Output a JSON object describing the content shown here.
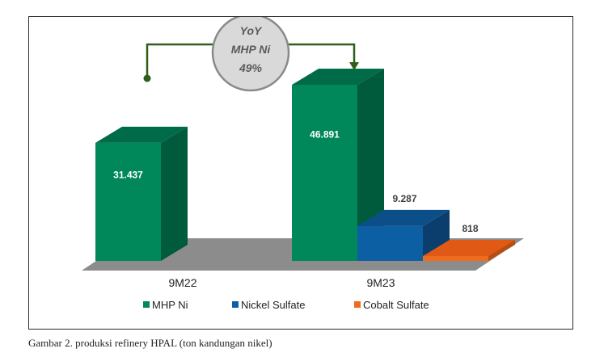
{
  "chart_data": {
    "type": "bar",
    "categories": [
      "9M22",
      "9M23"
    ],
    "series": [
      {
        "name": "MHP Ni",
        "values": [
          31437,
          46891
        ],
        "labels": [
          "31.437",
          "46.891"
        ]
      },
      {
        "name": "Nickel Sulfate",
        "values": [
          null,
          9287
        ],
        "labels": [
          null,
          "9.287"
        ]
      },
      {
        "name": "Cobalt Sulfate",
        "values": [
          null,
          818
        ],
        "labels": [
          null,
          "818"
        ]
      }
    ],
    "colors": {
      "MHP Ni": {
        "front": "#00875a",
        "side": "#005a3c",
        "top": "#006b48"
      },
      "Nickel Sulfate": {
        "front": "#0d5fa3",
        "side": "#0b3e6c",
        "top": "#0c4f88"
      },
      "Cobalt Sulfate": {
        "front": "#ef6b1e",
        "side": "#b84d12",
        "top": "#e05a15"
      },
      "floor": "#8c8c8c"
    },
    "annotation": {
      "lines": [
        "YoY",
        "MHP Ni",
        "49%"
      ],
      "from": "9M22",
      "to": "9M23"
    },
    "ylim": [
      0,
      50000
    ],
    "legend": "bottom",
    "grid": false
  },
  "caption": "Gambar 2. produksi refinery HPAL (ton kandungan nikel)"
}
